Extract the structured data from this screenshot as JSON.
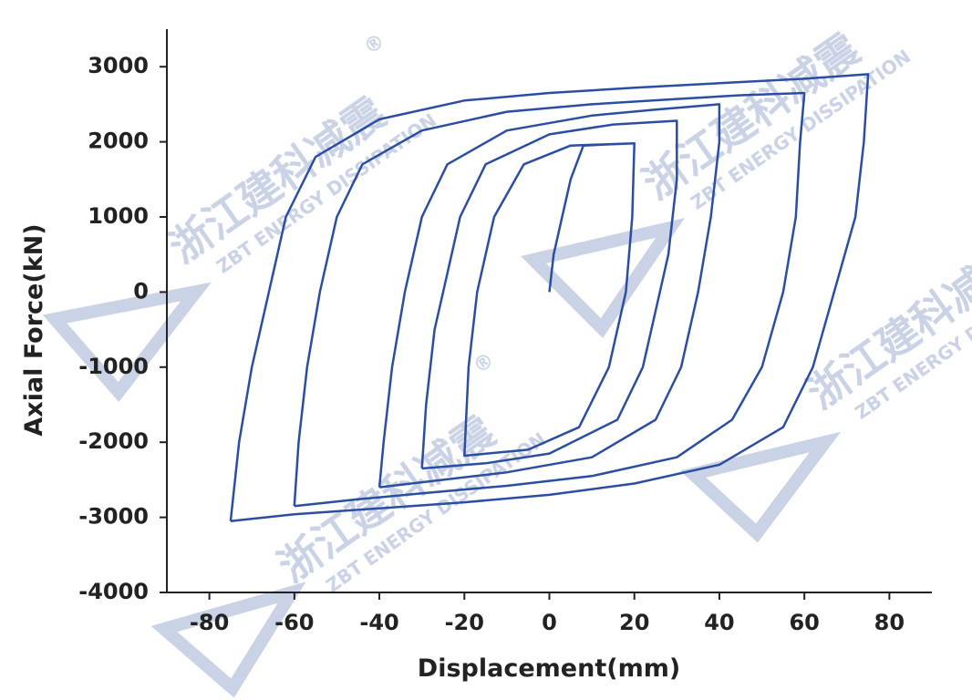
{
  "chart_data": {
    "type": "line",
    "xlabel": "Displacement(mm)",
    "ylabel": "Axial Force(kN)",
    "xlim": [
      -90,
      90
    ],
    "xticks": [
      -80,
      -60,
      -40,
      -20,
      0,
      20,
      40,
      60,
      80
    ],
    "ylim": [
      -4000,
      3500
    ],
    "yticks": [
      -4000,
      -3000,
      -2000,
      -1000,
      0,
      1000,
      2000,
      3000
    ],
    "watermark": {
      "cn": "浙江建科减震",
      "en": "ZBT ENERGY DISSIPATION",
      "mark": "®"
    },
    "series": [
      {
        "color": "#2b4ea2",
        "x": [
          0,
          1,
          5,
          8,
          20,
          19.5,
          18,
          14,
          7,
          -5,
          -20,
          -19,
          -17,
          -13,
          -6,
          5,
          20
        ],
        "values": [
          0,
          500,
          1500,
          1950,
          1980,
          1000,
          0,
          -1000,
          -1800,
          -2100,
          -2180,
          -1000,
          0,
          1000,
          1700,
          1950,
          1980
        ]
      },
      {
        "color": "#2b4ea2",
        "x": [
          -30,
          -29,
          -27,
          -25,
          -21,
          -15,
          0,
          15,
          30,
          30,
          28,
          26,
          22,
          16,
          0,
          -15,
          -30
        ],
        "values": [
          -2350,
          -1500,
          -500,
          0,
          1000,
          1700,
          2100,
          2230,
          2280,
          1500,
          500,
          0,
          -1000,
          -1700,
          -2150,
          -2280,
          -2350
        ]
      },
      {
        "color": "#2b4ea2",
        "x": [
          -40,
          -39,
          -37,
          -34,
          -30,
          -24,
          -10,
          10,
          25,
          40,
          40,
          38,
          35,
          31,
          25,
          10,
          -10,
          -25,
          -40
        ],
        "values": [
          -2600,
          -2000,
          -1000,
          0,
          1000,
          1700,
          2150,
          2350,
          2430,
          2500,
          2000,
          1000,
          0,
          -1000,
          -1700,
          -2200,
          -2400,
          -2500,
          -2600
        ]
      },
      {
        "color": "#2b4ea2",
        "x": [
          -60,
          -59,
          -57,
          -54,
          -50,
          -44,
          -30,
          -10,
          10,
          30,
          45,
          60,
          59,
          58,
          55,
          50,
          43,
          30,
          10,
          -10,
          -30,
          -45,
          -60
        ],
        "values": [
          -2850,
          -2000,
          -1000,
          0,
          1000,
          1700,
          2150,
          2400,
          2500,
          2570,
          2620,
          2650,
          2000,
          1000,
          0,
          -1000,
          -1700,
          -2200,
          -2450,
          -2580,
          -2680,
          -2760,
          -2850
        ]
      },
      {
        "color": "#2b4ea2",
        "x": [
          -75,
          -73,
          -70,
          -66,
          -62,
          -55,
          -40,
          -20,
          0,
          20,
          40,
          60,
          75,
          74,
          72,
          67,
          62,
          55,
          40,
          20,
          0,
          -20,
          -40,
          -60,
          -75
        ],
        "values": [
          -3050,
          -2000,
          -1000,
          0,
          1000,
          1800,
          2300,
          2550,
          2650,
          2720,
          2780,
          2840,
          2900,
          2000,
          1000,
          0,
          -1000,
          -1800,
          -2300,
          -2550,
          -2700,
          -2800,
          -2880,
          -2960,
          -3050
        ]
      }
    ]
  }
}
